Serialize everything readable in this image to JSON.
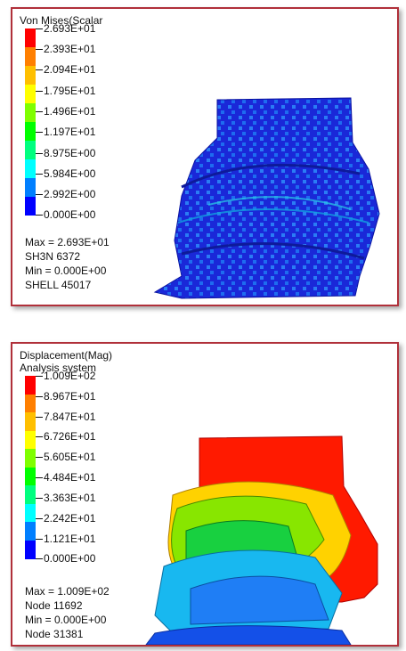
{
  "panels": [
    {
      "title_lines": [
        "Von Mises(Scalar"
      ],
      "scale_colors": [
        "#ff0000",
        "#ff7f00",
        "#ffbf00",
        "#ffff00",
        "#7fff00",
        "#00ff00",
        "#00ff7f",
        "#00ffff",
        "#007fff",
        "#0000ff"
      ],
      "tick_labels": [
        "2.693E+01",
        "2.393E+01",
        "2.094E+01",
        "1.795E+01",
        "1.496E+01",
        "1.197E+01",
        "8.975E+00",
        "5.984E+00",
        "2.992E+00",
        "0.000E+00"
      ],
      "info": [
        "Max = 2.693E+01",
        "SH3N 6372",
        "Min = 0.000E+00",
        "SHELL 45017"
      ]
    },
    {
      "title_lines": [
        "Displacement(Mag)",
        "Analysis system"
      ],
      "scale_colors": [
        "#ff0000",
        "#ff7f00",
        "#ffbf00",
        "#ffff00",
        "#7fff00",
        "#00ff00",
        "#00ff7f",
        "#00ffff",
        "#007fff",
        "#0000ff"
      ],
      "tick_labels": [
        "1.009E+02",
        "8.967E+01",
        "7.847E+01",
        "6.726E+01",
        "5.605E+01",
        "4.484E+01",
        "3.363E+01",
        "2.242E+01",
        "1.121E+01",
        "0.000E+00"
      ],
      "info": [
        "Max = 1.009E+02",
        "Node 11692",
        "Min = 0.000E+00",
        "Node 31381"
      ]
    }
  ]
}
